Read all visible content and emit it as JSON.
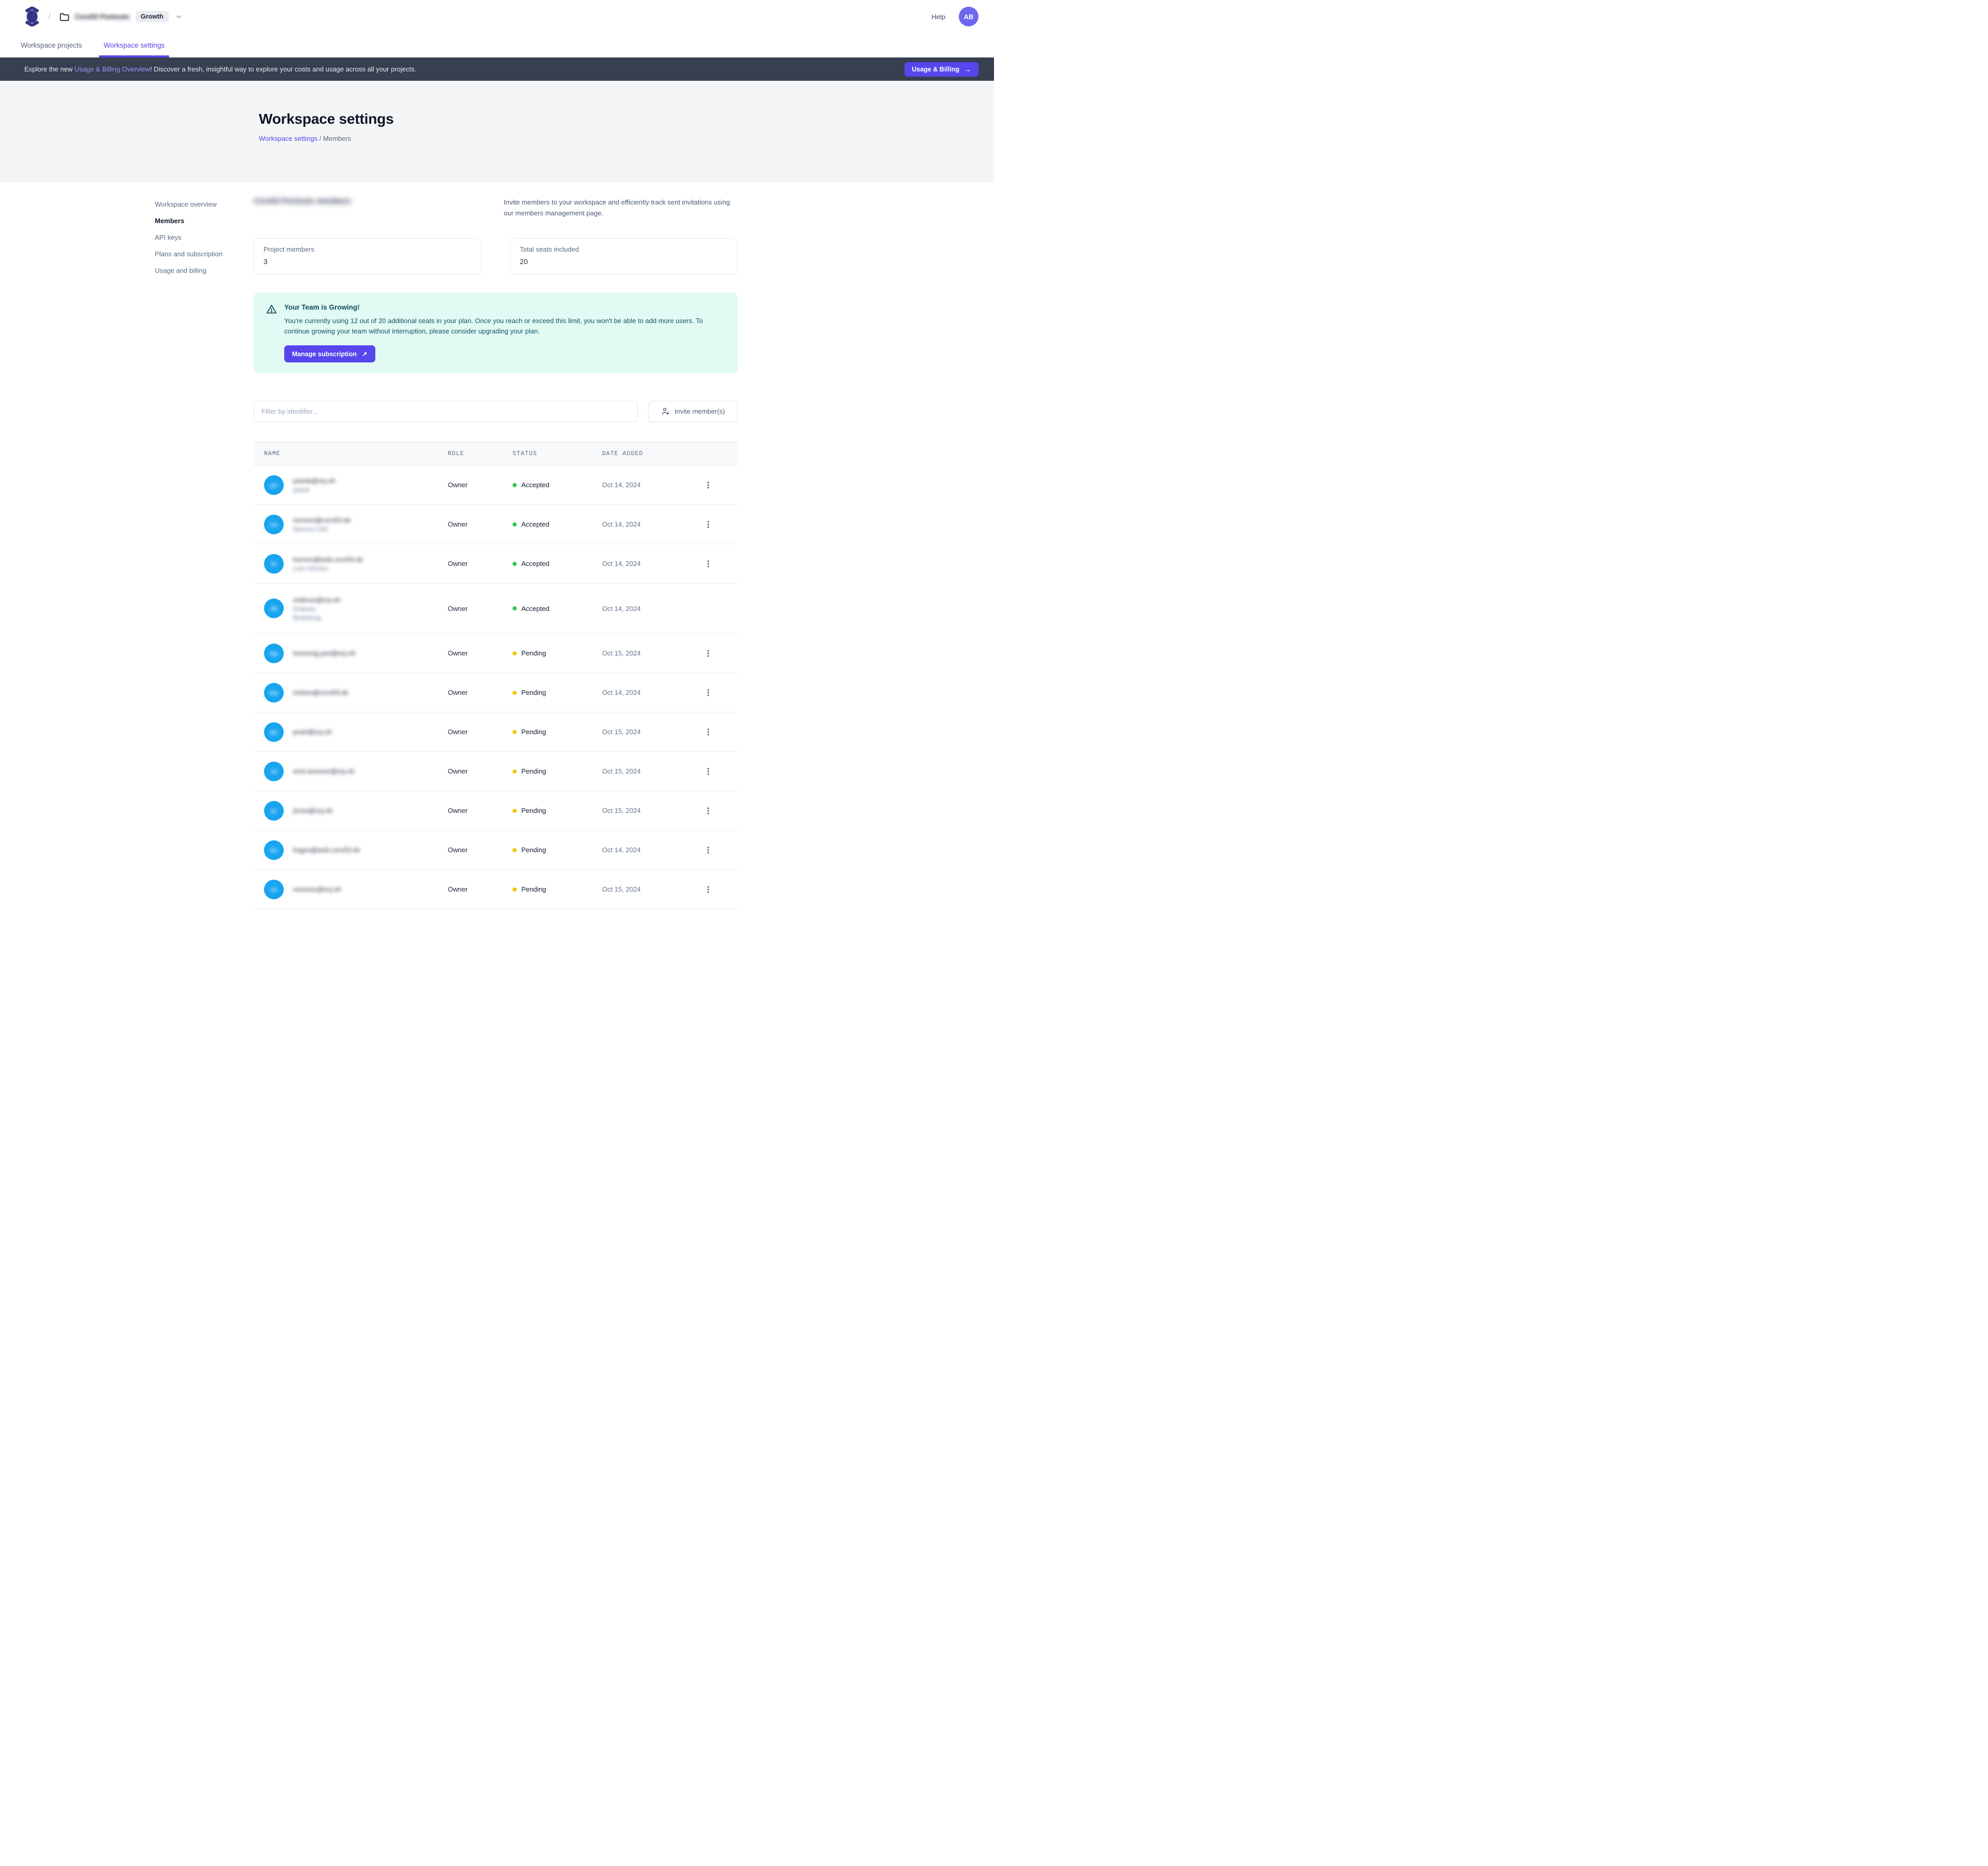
{
  "colors": {
    "accent_purple": "#5646ec",
    "avatar_purple": "#6d68ee",
    "member_avatar_blue": "#18a4ef",
    "banner_bg": "#364050",
    "alert_bg": "#e2faf4",
    "alert_text": "#155163",
    "status_accepted_dot": "#31c859",
    "status_pending_dot": "#f2c50d"
  },
  "topbar": {
    "workspace_name_redacted": "Cxre53 Pxntxsts",
    "plan_badge": "Growth",
    "help_label": "Help",
    "avatar_initials": "AB",
    "path_separator": "/"
  },
  "tabs": [
    {
      "label": "Workspace projects",
      "active": false
    },
    {
      "label": "Workspace settings",
      "active": true
    }
  ],
  "banner": {
    "text_prefix": "Explore the new ",
    "link_text": "Usage & Billing Overview",
    "text_suffix": "! Discover a fresh, insightful way to explore your costs and usage across all your projects.",
    "button_label": "Usage & Billing",
    "button_arrow": "→"
  },
  "page_head": {
    "title": "Workspace settings",
    "breadcrumb_link": "Workspace settings",
    "breadcrumb_separator": " / ",
    "breadcrumb_current": "Members"
  },
  "sidebar": {
    "items": [
      {
        "label": "Workspace overview",
        "active": false
      },
      {
        "label": "Members",
        "active": true
      },
      {
        "label": "API keys",
        "active": false
      },
      {
        "label": "Plans and subscription",
        "active": false
      },
      {
        "label": "Usage and billing",
        "active": false
      }
    ]
  },
  "members": {
    "section_title_redacted": "Cxre53 Pxntxsts members",
    "description": "Invite members to your workspace and efficiently track sent invitations using our members management page.",
    "stats": [
      {
        "label": "Project members",
        "value": "3"
      },
      {
        "label": "Total seats included",
        "value": "20"
      }
    ],
    "alert": {
      "title": "Your Team is Growing!",
      "body": "You're currently using 12 out of 20 additional seats in your plan. Once you reach or exceed this limit, you won't be able to add more users. To continue growing your team without interruption, please consider upgrading your plan.",
      "button_label": "Manage subscription",
      "button_arrow": "↗"
    },
    "filter_placeholder": "Filter by identifier...",
    "invite_button_label": "Invite member(s)",
    "table": {
      "headers": [
        "NAME",
        "ROLE",
        "STATUS",
        "DATE ADDED"
      ],
      "status_colors": {
        "Accepted": "#31c859",
        "Pending": "#f2c50d"
      },
      "rows": [
        {
          "initials_redacted": "px",
          "email_redacted": "pxtrxk@xry.sh",
          "name_lines_redacted": [
            "pxtrxk"
          ],
          "role": "Owner",
          "status": "Accepted",
          "date": "Oct 14, 2024",
          "has_menu": true
        },
        {
          "initials_redacted": "nx",
          "email_redacted": "nxrmxn@cxrx53.dx",
          "name_lines_redacted": [
            "Nxrmxn C53"
          ],
          "role": "Owner",
          "status": "Accepted",
          "date": "Oct 14, 2024",
          "has_menu": true
        },
        {
          "initials_redacted": "lx",
          "email_redacted": "hxrrxrx@wxb.cxrx53.dx",
          "name_lines_redacted": [
            "Lxxn Hxrrxrx"
          ],
          "role": "Owner",
          "status": "Accepted",
          "date": "Oct 14, 2024",
          "has_menu": true
        },
        {
          "initials_redacted": "xb",
          "email_redacted": "xndrxxs@xry.sh",
          "name_lines_redacted": [
            "Xndrxxs",
            "Bxckstxxg"
          ],
          "role": "Owner",
          "status": "Accepted",
          "date": "Oct 14, 2024",
          "has_menu": false
        },
        {
          "initials_redacted": "hp",
          "email_redacted": "hxnnxng.pxn@xry.sh",
          "name_lines_redacted": [],
          "role": "Owner",
          "status": "Pending",
          "date": "Oct 15, 2024",
          "has_menu": true
        },
        {
          "initials_redacted": "mx",
          "email_redacted": "mxhxn@cxrx53.dx",
          "name_lines_redacted": [],
          "role": "Owner",
          "status": "Pending",
          "date": "Oct 14, 2024",
          "has_menu": true
        },
        {
          "initials_redacted": "px",
          "email_redacted": "pxxtr@xry.sh",
          "name_lines_redacted": [],
          "role": "Owner",
          "status": "Pending",
          "date": "Oct 15, 2024",
          "has_menu": true
        },
        {
          "initials_redacted": "xt",
          "email_redacted": "xrnx.txxnsxn@xry.sh",
          "name_lines_redacted": [],
          "role": "Owner",
          "status": "Pending",
          "date": "Oct 15, 2024",
          "has_menu": true
        },
        {
          "initials_redacted": "jx",
          "email_redacted": "jxnxs@xry.sh",
          "name_lines_redacted": [],
          "role": "Owner",
          "status": "Pending",
          "date": "Oct 15, 2024",
          "has_menu": true
        },
        {
          "initials_redacted": "hx",
          "email_redacted": "hxgxx@wxb.cxrx53.dx",
          "name_lines_redacted": [],
          "role": "Owner",
          "status": "Pending",
          "date": "Oct 14, 2024",
          "has_menu": true
        },
        {
          "initials_redacted": "vx",
          "email_redacted": "vxnxssx@xry.sh",
          "name_lines_redacted": [],
          "role": "Owner",
          "status": "Pending",
          "date": "Oct 15, 2024",
          "has_menu": true
        }
      ]
    }
  }
}
